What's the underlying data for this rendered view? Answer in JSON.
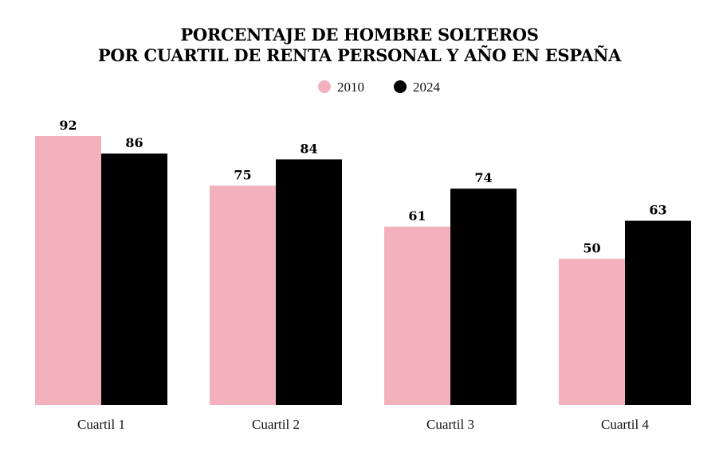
{
  "chart_data": {
    "type": "bar",
    "title_line1": "PORCENTAJE DE HOMBRE SOLTEROS",
    "title_line2": "POR CUARTIL DE RENTA PERSONAL Y AÑO EN ESPAÑA",
    "categories": [
      "Cuartil 1",
      "Cuartil 2",
      "Cuartil 3",
      "Cuartil 4"
    ],
    "series": [
      {
        "name": "2010",
        "color": "#f2b1bd",
        "values": [
          92,
          75,
          61,
          50
        ]
      },
      {
        "name": "2024",
        "color": "#000000",
        "values": [
          86,
          84,
          74,
          63
        ]
      }
    ],
    "xlabel": "",
    "ylabel": "",
    "ylim": [
      0,
      92
    ],
    "grid": false,
    "legend": "top-center"
  }
}
